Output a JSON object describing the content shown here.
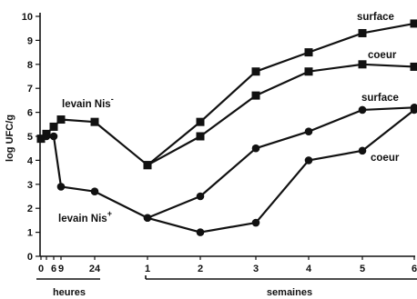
{
  "chart_data": {
    "type": "line",
    "ylabel": "log UFC/g",
    "ylim": [
      0,
      10
    ],
    "y_ticks": [
      "0",
      "1",
      "2",
      "3",
      "4",
      "5",
      "6",
      "7",
      "8",
      "9",
      "10"
    ],
    "x_groups": [
      {
        "label": "heures",
        "ticks": [
          "0",
          "6",
          "9",
          "24"
        ]
      },
      {
        "label": "semaines",
        "ticks": [
          "1",
          "2",
          "3",
          "4",
          "5",
          "6"
        ]
      }
    ],
    "x_positions": [
      "0 h",
      "3 h",
      "6 h",
      "9 h",
      "24 h",
      "1 sem",
      "2 sem",
      "3 sem",
      "4 sem",
      "5 sem",
      "6 sem"
    ],
    "series": [
      {
        "name": "levain Nis⁻ surface",
        "marker": "square",
        "points": [
          {
            "x": "0 h",
            "y": 4.9
          },
          {
            "x": "3 h",
            "y": 5.1
          },
          {
            "x": "6 h",
            "y": 5.4
          },
          {
            "x": "9 h",
            "y": 5.7
          },
          {
            "x": "24 h",
            "y": 5.6
          },
          {
            "x": "1 sem",
            "y": 3.8
          },
          {
            "x": "2 sem",
            "y": 5.6
          },
          {
            "x": "3 sem",
            "y": 7.7
          },
          {
            "x": "4 sem",
            "y": 8.5
          },
          {
            "x": "5 sem",
            "y": 9.3
          },
          {
            "x": "6 sem",
            "y": 9.7
          }
        ]
      },
      {
        "name": "levain Nis⁻ coeur",
        "marker": "square",
        "points": [
          {
            "x": "1 sem",
            "y": 3.8
          },
          {
            "x": "2 sem",
            "y": 5.0
          },
          {
            "x": "3 sem",
            "y": 6.7
          },
          {
            "x": "4 sem",
            "y": 7.7
          },
          {
            "x": "5 sem",
            "y": 8.0
          },
          {
            "x": "6 sem",
            "y": 7.9
          }
        ]
      },
      {
        "name": "levain Nis⁺ surface",
        "marker": "circle",
        "points": [
          {
            "x": "0 h",
            "y": 4.9
          },
          {
            "x": "3 h",
            "y": 5.0
          },
          {
            "x": "6 h",
            "y": 5.0
          },
          {
            "x": "9 h",
            "y": 2.9
          },
          {
            "x": "24 h",
            "y": 2.7
          },
          {
            "x": "1 sem",
            "y": 1.6
          },
          {
            "x": "2 sem",
            "y": 2.5
          },
          {
            "x": "3 sem",
            "y": 4.5
          },
          {
            "x": "4 sem",
            "y": 5.2
          },
          {
            "x": "5 sem",
            "y": 6.1
          },
          {
            "x": "6 sem",
            "y": 6.2
          }
        ]
      },
      {
        "name": "levain Nis⁺ coeur",
        "marker": "circle",
        "points": [
          {
            "x": "1 sem",
            "y": 1.6
          },
          {
            "x": "2 sem",
            "y": 1.0
          },
          {
            "x": "3 sem",
            "y": 1.4
          },
          {
            "x": "4 sem",
            "y": 4.0
          },
          {
            "x": "5 sem",
            "y": 4.4
          },
          {
            "x": "6 sem",
            "y": 6.1
          }
        ]
      }
    ],
    "annotations": [
      {
        "text": "surface",
        "near": "6 sem"
      },
      {
        "text": "coeur",
        "near": "6 sem"
      },
      {
        "text": "surface",
        "near": "6 sem"
      },
      {
        "text": "coeur",
        "near": "6 sem"
      },
      {
        "text": "levain Nis",
        "sup": "-"
      },
      {
        "text": "levain Nis",
        "sup": "+"
      }
    ],
    "grid": false,
    "legend": "none"
  }
}
